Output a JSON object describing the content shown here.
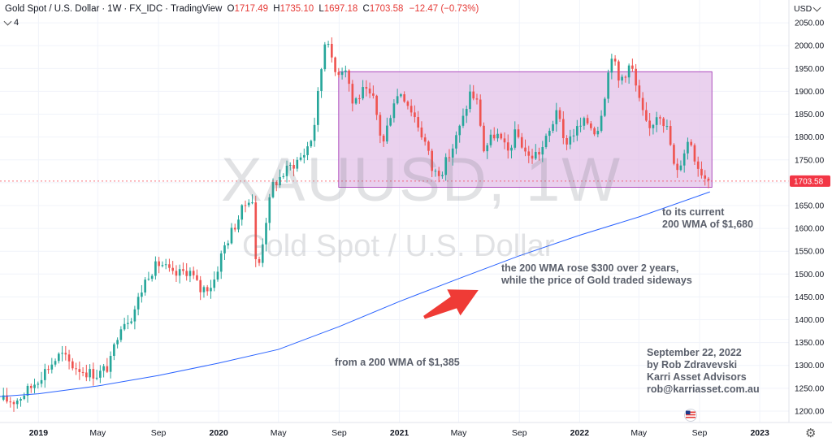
{
  "header": {
    "symbol_name": "Gold Spot / U.S. Dollar",
    "interval": "1W",
    "source": "FX_IDC",
    "platform": "TradingView",
    "ohlc": {
      "o": "1717.49",
      "h": "1735.10",
      "l": "1697.18",
      "c": "1703.58",
      "change": "−12.47 (−0.73%)"
    }
  },
  "indicator_count": "4",
  "currency": "USD",
  "watermark": {
    "symbol": "XAUUSD, 1W",
    "name": "Gold Spot / U.S. Dollar"
  },
  "annotations": {
    "end_line1": "to its current",
    "end_line2": "200 WMA of $1,680",
    "mid_line1": "the 200 WMA rose $300 over 2 years,",
    "mid_line2": "while the price of Gold traded sideways",
    "start": "from a 200 WMA of $1,385",
    "credit_date": "September 22, 2022",
    "credit_author": "by Rob Zdravevski",
    "credit_company": "Karri Asset Advisors",
    "credit_email": "rob@karriasset.com.au"
  },
  "colors": {
    "up": "#26a69a",
    "down": "#ef5350",
    "ma": "#2962ff",
    "box": "#e1bee7",
    "box_border": "#9c27b0",
    "arrow": "#ef3b36",
    "last_price": "#f23645"
  },
  "chart_data": {
    "type": "candlestick",
    "title": "",
    "ylim": [
      1175,
      2100
    ],
    "y_ticks": [
      1200,
      1250,
      1300,
      1350,
      1400,
      1450,
      1500,
      1550,
      1600,
      1650,
      1700,
      1750,
      1800,
      1850,
      1900,
      1950,
      2000,
      2050
    ],
    "y_tick_labels": [
      "1200.00",
      "1250.00",
      "1300.00",
      "1350.00",
      "1400.00",
      "1450.00",
      "1500.00",
      "1550.00",
      "1600.00",
      "1650.00",
      "1700.00",
      "1750.00",
      "1800.00",
      "1850.00",
      "1900.00",
      "1950.00",
      "2000.00",
      "2050.00"
    ],
    "x_range": [
      "2018-10-15",
      "2023-03-01"
    ],
    "x_ticks": [
      {
        "date": "2019-01-01",
        "label": "2019",
        "bold": true
      },
      {
        "date": "2019-05-01",
        "label": "May",
        "bold": false
      },
      {
        "date": "2019-09-01",
        "label": "Sep",
        "bold": false
      },
      {
        "date": "2020-01-01",
        "label": "2020",
        "bold": true
      },
      {
        "date": "2020-05-01",
        "label": "May",
        "bold": false
      },
      {
        "date": "2020-09-01",
        "label": "Sep",
        "bold": false
      },
      {
        "date": "2021-01-01",
        "label": "2021",
        "bold": true
      },
      {
        "date": "2021-05-01",
        "label": "May",
        "bold": false
      },
      {
        "date": "2021-09-01",
        "label": "Sep",
        "bold": false
      },
      {
        "date": "2022-01-01",
        "label": "2022",
        "bold": true
      },
      {
        "date": "2022-05-01",
        "label": "May",
        "bold": false
      },
      {
        "date": "2022-09-01",
        "label": "Sep",
        "bold": false
      },
      {
        "date": "2023-01-01",
        "label": "2023",
        "bold": true
      }
    ],
    "last_price": 1703.58,
    "last_price_label": "1703.58",
    "close_path": [
      [
        "2018-10-15",
        1225
      ],
      [
        "2018-11-15",
        1222
      ],
      [
        "2018-12-15",
        1250
      ],
      [
        "2019-01-15",
        1290
      ],
      [
        "2019-02-15",
        1325
      ],
      [
        "2019-03-10",
        1300
      ],
      [
        "2019-04-10",
        1285
      ],
      [
        "2019-05-01",
        1280
      ],
      [
        "2019-05-25",
        1300
      ],
      [
        "2019-06-15",
        1390
      ],
      [
        "2019-07-10",
        1410
      ],
      [
        "2019-08-10",
        1500
      ],
      [
        "2019-09-05",
        1525
      ],
      [
        "2019-10-01",
        1495
      ],
      [
        "2019-11-01",
        1510
      ],
      [
        "2019-11-25",
        1465
      ],
      [
        "2019-12-20",
        1478
      ],
      [
        "2020-01-10",
        1555
      ],
      [
        "2020-02-20",
        1645
      ],
      [
        "2020-03-08",
        1680
      ],
      [
        "2020-03-18",
        1490
      ],
      [
        "2020-04-05",
        1615
      ],
      [
        "2020-04-20",
        1695
      ],
      [
        "2020-05-20",
        1730
      ],
      [
        "2020-06-20",
        1760
      ],
      [
        "2020-07-10",
        1805
      ],
      [
        "2020-07-28",
        1960
      ],
      [
        "2020-08-07",
        2040
      ],
      [
        "2020-08-20",
        1940
      ],
      [
        "2020-09-15",
        1955
      ],
      [
        "2020-09-28",
        1875
      ],
      [
        "2020-10-20",
        1900
      ],
      [
        "2020-11-10",
        1880
      ],
      [
        "2020-11-28",
        1780
      ],
      [
        "2020-12-20",
        1880
      ],
      [
        "2021-01-05",
        1900
      ],
      [
        "2021-01-30",
        1850
      ],
      [
        "2021-02-25",
        1780
      ],
      [
        "2021-03-10",
        1720
      ],
      [
        "2021-03-30",
        1730
      ],
      [
        "2021-04-20",
        1780
      ],
      [
        "2021-05-10",
        1840
      ],
      [
        "2021-05-25",
        1900
      ],
      [
        "2021-06-10",
        1870
      ],
      [
        "2021-06-20",
        1770
      ],
      [
        "2021-07-15",
        1810
      ],
      [
        "2021-08-08",
        1765
      ],
      [
        "2021-08-25",
        1810
      ],
      [
        "2021-09-20",
        1755
      ],
      [
        "2021-10-15",
        1770
      ],
      [
        "2021-11-05",
        1820
      ],
      [
        "2021-11-15",
        1865
      ],
      [
        "2021-11-30",
        1785
      ],
      [
        "2021-12-20",
        1810
      ],
      [
        "2022-01-15",
        1835
      ],
      [
        "2022-02-05",
        1810
      ],
      [
        "2022-02-20",
        1890
      ],
      [
        "2022-03-08",
        1990
      ],
      [
        "2022-03-20",
        1920
      ],
      [
        "2022-04-15",
        1960
      ],
      [
        "2022-05-01",
        1880
      ],
      [
        "2022-05-20",
        1810
      ],
      [
        "2022-06-10",
        1860
      ],
      [
        "2022-06-30",
        1810
      ],
      [
        "2022-07-15",
        1710
      ],
      [
        "2022-07-30",
        1765
      ],
      [
        "2022-08-12",
        1800
      ],
      [
        "2022-08-25",
        1745
      ],
      [
        "2022-09-10",
        1715
      ],
      [
        "2022-09-20",
        1703.58
      ]
    ],
    "ma_200w": {
      "name": "",
      "points": [
        [
          "2018-10-15",
          1232
        ],
        [
          "2019-01-01",
          1238
        ],
        [
          "2019-05-01",
          1255
        ],
        [
          "2019-09-01",
          1278
        ],
        [
          "2020-01-01",
          1305
        ],
        [
          "2020-05-01",
          1335
        ],
        [
          "2020-09-01",
          1385
        ],
        [
          "2021-01-01",
          1440
        ],
        [
          "2021-05-01",
          1490
        ],
        [
          "2021-09-01",
          1540
        ],
        [
          "2022-01-01",
          1585
        ],
        [
          "2022-05-01",
          1625
        ],
        [
          "2022-09-22",
          1680
        ]
      ]
    },
    "range_box": {
      "x0": "2020-08-31",
      "x1": "2022-09-26",
      "y0": 1690,
      "y1": 1943
    },
    "arrow": {
      "from": [
        "2021-02-20",
        1405
      ],
      "to": [
        "2021-06-10",
        1465
      ]
    }
  }
}
